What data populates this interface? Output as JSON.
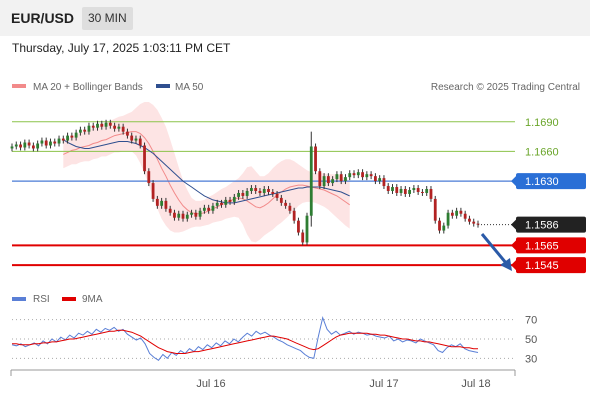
{
  "header": {
    "symbol": "EUR/USD",
    "timeframe": "30 MIN"
  },
  "datetime": "Thursday, July 17, 2025 1:03:11 PM CET",
  "attribution": "Research © 2025 Trading Central",
  "colors": {
    "bollinger": "#f28a8a",
    "ma50": "#2f4f8f",
    "bull": "#2e7d32",
    "bear": "#b22222",
    "resistance": "#8bc34a",
    "pivot": "#4a7bd6",
    "support": "#e00000",
    "rsi": "#5a7fd6",
    "rsi_ma": "#e00000"
  },
  "chart_data": [
    {
      "type": "candlestick",
      "legend": {
        "placement": "top-left",
        "items": [
          "MA 20 + Bollinger Bands",
          "MA 50"
        ]
      },
      "ylim": [
        1.153,
        1.1712
      ],
      "x_ticks": [
        "Jul 16",
        "Jul 17",
        "Jul 18"
      ],
      "levels": [
        {
          "label": "1.1690",
          "value": 1.169,
          "kind": "resistance"
        },
        {
          "label": "1.1660",
          "value": 1.166,
          "kind": "resistance"
        },
        {
          "label": "1.1630",
          "value": 1.163,
          "kind": "pivot"
        },
        {
          "label": "1.1586",
          "value": 1.1586,
          "kind": "last"
        },
        {
          "label": "1.1565",
          "value": 1.1565,
          "kind": "support"
        },
        {
          "label": "1.1545",
          "value": 1.1545,
          "kind": "support"
        }
      ],
      "close": [
        1.1665,
        1.1667,
        1.1664,
        1.1669,
        1.1666,
        1.1663,
        1.1668,
        1.1671,
        1.1666,
        1.167,
        1.1668,
        1.1673,
        1.1671,
        1.1676,
        1.1674,
        1.1679,
        1.1682,
        1.168,
        1.1686,
        1.1684,
        1.1688,
        1.1685,
        1.1689,
        1.1686,
        1.1683,
        1.1685,
        1.168,
        1.1676,
        1.1671,
        1.1673,
        1.1666,
        1.164,
        1.1628,
        1.1612,
        1.1605,
        1.161,
        1.1602,
        1.1598,
        1.1593,
        1.1597,
        1.1592,
        1.1596,
        1.1598,
        1.1594,
        1.16,
        1.1603,
        1.16,
        1.1605,
        1.1608,
        1.1606,
        1.1611,
        1.1609,
        1.1614,
        1.1618,
        1.1615,
        1.162,
        1.1623,
        1.162,
        1.1618,
        1.1622,
        1.1619,
        1.1617,
        1.1613,
        1.1608,
        1.1605,
        1.16,
        1.159,
        1.1578,
        1.1568,
        1.1595,
        1.1665,
        1.164,
        1.1625,
        1.1635,
        1.1628,
        1.1632,
        1.1637,
        1.163,
        1.1634,
        1.1638,
        1.1636,
        1.1639,
        1.1634,
        1.1637,
        1.1635,
        1.163,
        1.1633,
        1.1625,
        1.162,
        1.1624,
        1.1618,
        1.1622,
        1.1617,
        1.1621,
        1.1623,
        1.1619,
        1.1618,
        1.1622,
        1.1612,
        1.159,
        1.158,
        1.1585,
        1.1598,
        1.1595,
        1.16,
        1.1597,
        1.1592,
        1.1589,
        1.1587,
        1.1586
      ],
      "bollinger_mid": [
        1.1657,
        1.1659,
        1.1661,
        1.1662,
        1.1664,
        1.1665,
        1.1666,
        1.1668,
        1.1669,
        1.1671,
        1.1672,
        1.1674,
        1.1676,
        1.1677,
        1.1678,
        1.1679,
        1.168,
        1.168,
        1.1678,
        1.1674,
        1.1668,
        1.166,
        1.1652,
        1.1643,
        1.1635,
        1.1626,
        1.1618,
        1.1611,
        1.1605,
        1.1601,
        1.1598,
        1.1597,
        1.1597,
        1.1598,
        1.16,
        1.1602,
        1.1604,
        1.1606,
        1.1608,
        1.161,
        1.1612,
        1.1613,
        1.1612,
        1.161,
        1.1607,
        1.1604,
        1.1603,
        1.1605,
        1.1608,
        1.1612,
        1.1616,
        1.1619,
        1.1622,
        1.1624,
        1.1625,
        1.1626,
        1.1626,
        1.1625,
        1.1624,
        1.1623,
        1.1622,
        1.1621,
        1.1619,
        1.1617,
        1.1615,
        1.1612,
        1.1609,
        1.1606
      ],
      "bollinger_band_width": [
        0.0014,
        0.0014,
        0.0014,
        0.0015,
        0.0015,
        0.0015,
        0.0016,
        0.0016,
        0.0016,
        0.0016,
        0.0017,
        0.0017,
        0.0017,
        0.0018,
        0.0018,
        0.0019,
        0.002,
        0.0024,
        0.003,
        0.0036,
        0.0042,
        0.0047,
        0.005,
        0.0051,
        0.005,
        0.0046,
        0.004,
        0.0033,
        0.0026,
        0.002,
        0.0015,
        0.0013,
        0.0013,
        0.0013,
        0.0014,
        0.0014,
        0.0015,
        0.0016,
        0.0016,
        0.0017,
        0.0018,
        0.002,
        0.0026,
        0.0034,
        0.0038,
        0.0036,
        0.0032,
        0.003,
        0.003,
        0.0031,
        0.0031,
        0.0031,
        0.003,
        0.0028,
        0.0025,
        0.0021,
        0.0018,
        0.0016,
        0.0015,
        0.0015,
        0.0016,
        0.0017,
        0.0018,
        0.002,
        0.0022,
        0.0023,
        0.0024,
        0.0024
      ],
      "ma50": [
        1.1672,
        1.1669,
        1.1667,
        1.1665,
        1.1664,
        1.1663,
        1.1663,
        1.1664,
        1.1665,
        1.1666,
        1.1667,
        1.1668,
        1.1669,
        1.167,
        1.167,
        1.167,
        1.1669,
        1.1668,
        1.1666,
        1.1664,
        1.1661,
        1.1658,
        1.1654,
        1.165,
        1.1646,
        1.1642,
        1.1638,
        1.1634,
        1.163,
        1.1627,
        1.1624,
        1.1621,
        1.1618,
        1.1615,
        1.1613,
        1.1611,
        1.161,
        1.1609,
        1.1608,
        1.1608,
        1.1608,
        1.1609,
        1.161,
        1.1611,
        1.1612,
        1.1613,
        1.1614,
        1.1615,
        1.1616,
        1.1617,
        1.1618,
        1.1619,
        1.162,
        1.1621,
        1.1622,
        1.1623,
        1.1623,
        1.1624,
        1.1624,
        1.1624,
        1.1624,
        1.1623,
        1.1622,
        1.1621,
        1.162,
        1.1619,
        1.1617,
        1.1615
      ]
    },
    {
      "type": "line",
      "legend": {
        "placement": "top-left",
        "items": [
          "RSI",
          "9MA"
        ]
      },
      "ylim": [
        20,
        80
      ],
      "y_ticks": [
        70,
        50,
        30
      ],
      "series": [
        {
          "name": "RSI",
          "values": [
            44,
            43,
            45,
            42,
            44,
            46,
            43,
            48,
            45,
            50,
            47,
            52,
            49,
            54,
            51,
            56,
            54,
            58,
            55,
            60,
            57,
            61,
            59,
            62,
            58,
            60,
            55,
            52,
            49,
            51,
            45,
            35,
            31,
            28,
            34,
            30,
            36,
            33,
            38,
            35,
            40,
            37,
            42,
            39,
            44,
            41,
            46,
            43,
            48,
            45,
            50,
            47,
            52,
            56,
            53,
            58,
            55,
            57,
            54,
            52,
            49,
            47,
            44,
            42,
            40,
            38,
            34,
            31,
            30,
            52,
            72,
            60,
            55,
            58,
            54,
            56,
            58,
            55,
            57,
            56,
            54,
            55,
            53,
            52,
            51,
            53,
            48,
            50,
            47,
            49,
            48,
            46,
            50,
            48,
            46,
            44,
            38,
            36,
            41,
            44,
            42,
            45,
            40,
            38,
            37,
            36
          ]
        },
        {
          "name": "9MA",
          "values": [
            45,
            45,
            44,
            44,
            44,
            45,
            45,
            46,
            46,
            47,
            47,
            48,
            49,
            50,
            50,
            51,
            52,
            53,
            54,
            55,
            56,
            57,
            58,
            58,
            59,
            59,
            58,
            57,
            55,
            53,
            50,
            47,
            44,
            41,
            39,
            37,
            36,
            35,
            35,
            35,
            36,
            37,
            37,
            38,
            39,
            40,
            41,
            42,
            43,
            44,
            45,
            46,
            47,
            48,
            49,
            50,
            51,
            52,
            53,
            53,
            52,
            51,
            50,
            48,
            46,
            44,
            42,
            40,
            39,
            40,
            43,
            46,
            49,
            52,
            54,
            55,
            56,
            56,
            56,
            56,
            56,
            55,
            55,
            54,
            54,
            53,
            52,
            51,
            50,
            50,
            49,
            48,
            48,
            47,
            47,
            46,
            45,
            44,
            43,
            42,
            42,
            42,
            41,
            41,
            40,
            40
          ]
        }
      ]
    }
  ]
}
